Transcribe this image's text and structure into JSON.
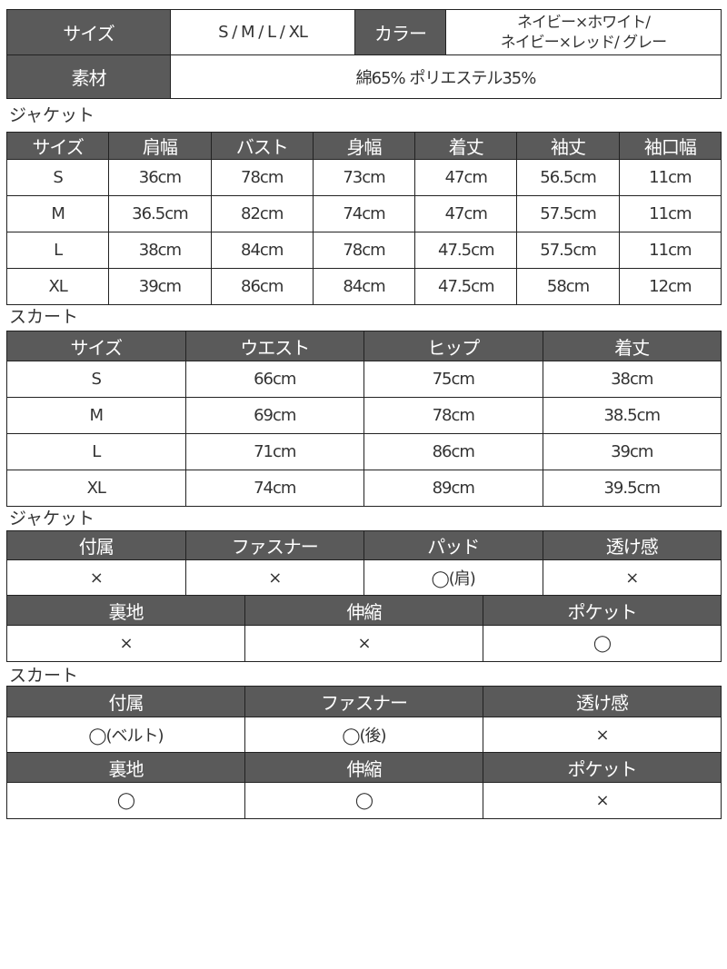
{
  "summary": {
    "size_label": "サイズ",
    "size_value": "S / M / L / XL",
    "color_label": "カラー",
    "color_value_line1": "ネイビー×ホワイト/",
    "color_value_line2": "ネイビー×レッド/ グレー",
    "material_label": "素材",
    "material_value": "綿65%  ポリエステル35%"
  },
  "jacket_size": {
    "label": "ジャケット",
    "headers": [
      "サイズ",
      "肩幅",
      "バスト",
      "身幅",
      "着丈",
      "袖丈",
      "袖口幅"
    ],
    "rows": [
      [
        "S",
        "36cm",
        "78cm",
        "73cm",
        "47cm",
        "56.5cm",
        "11cm"
      ],
      [
        "M",
        "36.5cm",
        "82cm",
        "74cm",
        "47cm",
        "57.5cm",
        "11cm"
      ],
      [
        "L",
        "38cm",
        "84cm",
        "78cm",
        "47.5cm",
        "57.5cm",
        "11cm"
      ],
      [
        "XL",
        "39cm",
        "86cm",
        "84cm",
        "47.5cm",
        "58cm",
        "12cm"
      ]
    ]
  },
  "skirt_size": {
    "label": "スカート",
    "headers": [
      "サイズ",
      "ウエスト",
      "ヒップ",
      "着丈"
    ],
    "rows": [
      [
        "S",
        "66cm",
        "75cm",
        "38cm"
      ],
      [
        "M",
        "69cm",
        "78cm",
        "38.5cm"
      ],
      [
        "L",
        "71cm",
        "86cm",
        "39cm"
      ],
      [
        "XL",
        "74cm",
        "89cm",
        "39.5cm"
      ]
    ]
  },
  "jacket_details": {
    "label": "ジャケット",
    "row1_headers": [
      "付属",
      "ファスナー",
      "パッド",
      "透け感"
    ],
    "row1_values": [
      "×",
      "×",
      "◯(肩)",
      "×"
    ],
    "row2_headers": [
      "裏地",
      "伸縮",
      "ポケット"
    ],
    "row2_values": [
      "×",
      "×",
      "◯"
    ]
  },
  "skirt_details": {
    "label": "スカート",
    "row1_headers": [
      "付属",
      "ファスナー",
      "透け感"
    ],
    "row1_values": [
      "◯(ベルト)",
      "◯(後)",
      "×"
    ],
    "row2_headers": [
      "裏地",
      "伸縮",
      "ポケット"
    ],
    "row2_values": [
      "◯",
      "◯",
      "×"
    ]
  },
  "colors": {
    "header_bg": "#5a5a5a",
    "border": "#222222"
  }
}
